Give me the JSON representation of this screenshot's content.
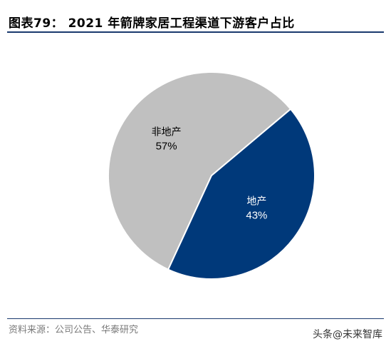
{
  "header": {
    "title": "图表79： 2021 年箭牌家居工程渠道下游客户占比"
  },
  "chart_data": {
    "type": "pie",
    "title": "图表79： 2021 年箭牌家居工程渠道下游客户占比",
    "slices": [
      {
        "label": "非地产",
        "value": 57,
        "display": "57%",
        "color": "#c0c0c0",
        "text_color": "#000000"
      },
      {
        "label": "地产",
        "value": 43,
        "display": "43%",
        "color": "#00397a",
        "text_color": "#ffffff"
      }
    ]
  },
  "footer": {
    "source": "资料来源：公司公告、华泰研究",
    "watermark": "头条@未来智库"
  }
}
